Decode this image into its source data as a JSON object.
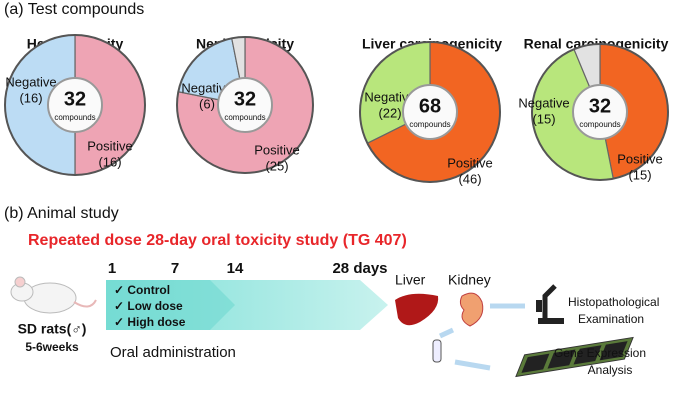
{
  "chart_data": [
    {
      "type": "pie",
      "title": "Hepatotoxicity",
      "categories": [
        "Positive",
        "Negative"
      ],
      "values": [
        16,
        16
      ],
      "value_labels": [
        "(16)",
        "(16)"
      ],
      "colors": [
        "#eea4b4",
        "#bcdcf4"
      ],
      "total": 32,
      "total_unit": "compounds"
    },
    {
      "type": "pie",
      "title": "Nephrotoxicity",
      "categories": [
        "Positive",
        "Negative",
        null
      ],
      "values": [
        25,
        6,
        1
      ],
      "value_labels": [
        "(25)",
        "(6)",
        null
      ],
      "colors": [
        "#eea4b4",
        "#bcdcf4",
        "#e2e2e2"
      ],
      "total": 32,
      "total_unit": "compounds"
    },
    {
      "type": "pie",
      "title": "Liver carcinogenicity",
      "categories": [
        "Positive",
        "Negative"
      ],
      "values": [
        46,
        22
      ],
      "value_labels": [
        "(46)",
        "(22)"
      ],
      "colors": [
        "#f26522",
        "#b8e67c"
      ],
      "total": 68,
      "total_unit": "compounds"
    },
    {
      "type": "pie",
      "title": "Renal carcinogenicity",
      "categories": [
        "Positive",
        "Negative",
        null
      ],
      "values": [
        15,
        15,
        2
      ],
      "value_labels": [
        "(15)",
        "(15)",
        null
      ],
      "colors": [
        "#f26522",
        "#b8e67c",
        "#e2e2e2"
      ],
      "total": 32,
      "total_unit": "compounds"
    }
  ],
  "panel_a": {
    "label": "(a) Test compounds"
  },
  "panel_b": {
    "label": "(b) Animal study",
    "study_title": "Repeated dose 28-day oral toxicity study (TG 407)",
    "animal": "SD rats(♂)",
    "age": "5-6weeks",
    "days": [
      "1",
      "7",
      "14",
      "28 days"
    ],
    "groups": [
      "✓ Control",
      "✓ Low dose",
      "✓ High dose"
    ],
    "route": "Oral administration",
    "organs": [
      "Liver",
      "Kidney"
    ],
    "analysis_1": [
      "Histopathological",
      "Examination"
    ],
    "analysis_2": [
      "Gene Expression",
      "Analysis"
    ]
  }
}
